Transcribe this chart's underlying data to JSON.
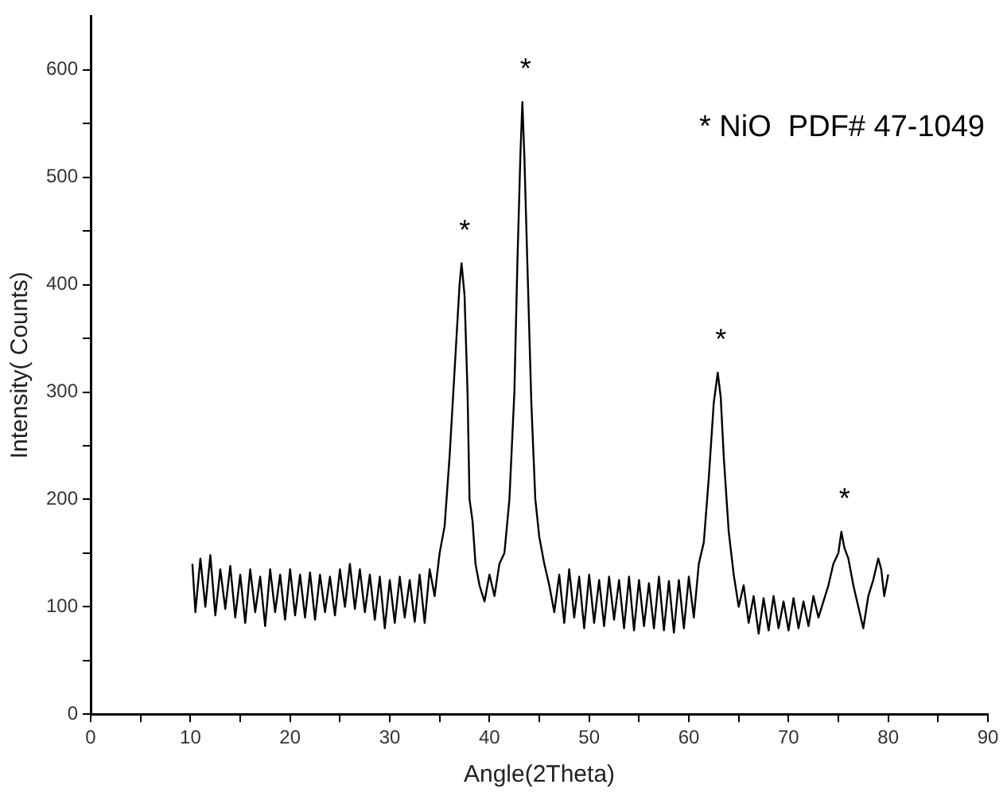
{
  "chart_data": {
    "type": "line",
    "xlabel": "Angle(2Theta)",
    "ylabel": "Intensity( Counts)",
    "xlim": [
      0,
      90
    ],
    "ylim": [
      0,
      650
    ],
    "xticks": [
      0,
      {
        "value": 5,
        "label": null
      },
      10,
      {
        "value": 15,
        "label": null
      },
      20,
      {
        "value": 25,
        "label": null
      },
      30,
      {
        "value": 35,
        "label": null
      },
      40,
      {
        "value": 45,
        "label": null
      },
      50,
      {
        "value": 55,
        "label": null
      },
      60,
      {
        "value": 65,
        "label": null
      },
      70,
      {
        "value": 75,
        "label": null
      },
      80,
      {
        "value": 85,
        "label": null
      },
      90
    ],
    "yticks": [
      0,
      {
        "value": 50,
        "label": null
      },
      100,
      {
        "value": 150,
        "label": null
      },
      200,
      {
        "value": 250,
        "label": null
      },
      300,
      {
        "value": 350,
        "label": null
      },
      400,
      {
        "value": 450,
        "label": null
      },
      500,
      {
        "value": 550,
        "label": null
      },
      600
    ],
    "grid": false,
    "legend": false,
    "marker": "none",
    "line_style": "solid",
    "annotations": [
      "* NiO  PDF# 47-1049",
      {
        "text": "*",
        "x": 37.2,
        "y": 420
      },
      {
        "text": "*",
        "x": 43.3,
        "y": 570
      },
      {
        "text": "*",
        "x": 62.9,
        "y": 318
      },
      {
        "text": "*",
        "x": 75.3,
        "y": 170
      }
    ],
    "series": [
      {
        "color": "#000000",
        "x": [
          10.2,
          10.5,
          11,
          11.5,
          12,
          12.5,
          13,
          13.5,
          14,
          14.5,
          15,
          15.5,
          16,
          16.5,
          17,
          17.5,
          18,
          18.5,
          19,
          19.5,
          20,
          20.5,
          21,
          21.5,
          22,
          22.5,
          23,
          23.5,
          24,
          24.5,
          25,
          25.5,
          26,
          26.5,
          27,
          27.5,
          28,
          28.5,
          29,
          29.5,
          30,
          30.5,
          31,
          31.5,
          32,
          32.5,
          33,
          33.5,
          34,
          34.5,
          35,
          35.5,
          36,
          36.5,
          37,
          37.2,
          37.5,
          37.8,
          38,
          38.3,
          38.6,
          39,
          39.5,
          40,
          40.5,
          41,
          41.5,
          42,
          42.5,
          42.8,
          43.1,
          43.3,
          43.5,
          43.8,
          44.2,
          44.6,
          45,
          45.5,
          46,
          46.5,
          47,
          47.5,
          48,
          48.5,
          49,
          49.5,
          50,
          50.5,
          51,
          51.5,
          52,
          52.5,
          53,
          53.5,
          54,
          54.5,
          55,
          55.5,
          56,
          56.5,
          57,
          57.5,
          58,
          58.5,
          59,
          59.5,
          60,
          60.5,
          61,
          61.5,
          62,
          62.5,
          62.9,
          63.2,
          63.5,
          64,
          64.5,
          65,
          65.5,
          66,
          66.5,
          67,
          67.5,
          68,
          68.5,
          69,
          69.5,
          70,
          70.5,
          71,
          71.5,
          72,
          72.5,
          73,
          73.5,
          74,
          74.5,
          75,
          75.3,
          75.6,
          76,
          76.5,
          77,
          77.5,
          78,
          78.5,
          79,
          79.3,
          79.6,
          80
        ],
        "values": [
          140,
          95,
          145,
          100,
          148,
          92,
          135,
          98,
          138,
          90,
          130,
          85,
          135,
          95,
          128,
          82,
          135,
          95,
          130,
          88,
          135,
          92,
          130,
          90,
          132,
          88,
          130,
          95,
          128,
          92,
          135,
          100,
          140,
          98,
          135,
          95,
          130,
          88,
          128,
          80,
          125,
          85,
          128,
          90,
          125,
          86,
          130,
          85,
          135,
          110,
          150,
          175,
          240,
          320,
          400,
          420,
          390,
          300,
          200,
          180,
          140,
          120,
          105,
          130,
          110,
          140,
          150,
          200,
          300,
          420,
          520,
          570,
          520,
          420,
          290,
          200,
          165,
          140,
          120,
          95,
          130,
          85,
          135,
          90,
          128,
          80,
          130,
          85,
          125,
          82,
          128,
          88,
          125,
          80,
          128,
          78,
          125,
          82,
          122,
          80,
          128,
          78,
          124,
          76,
          125,
          80,
          128,
          90,
          140,
          160,
          220,
          290,
          318,
          295,
          240,
          170,
          130,
          100,
          120,
          85,
          110,
          75,
          108,
          78,
          110,
          80,
          105,
          78,
          108,
          80,
          105,
          82,
          110,
          90,
          105,
          120,
          140,
          150,
          170,
          155,
          145,
          120,
          100,
          80,
          110,
          125,
          145,
          135,
          110,
          130
        ]
      }
    ]
  }
}
